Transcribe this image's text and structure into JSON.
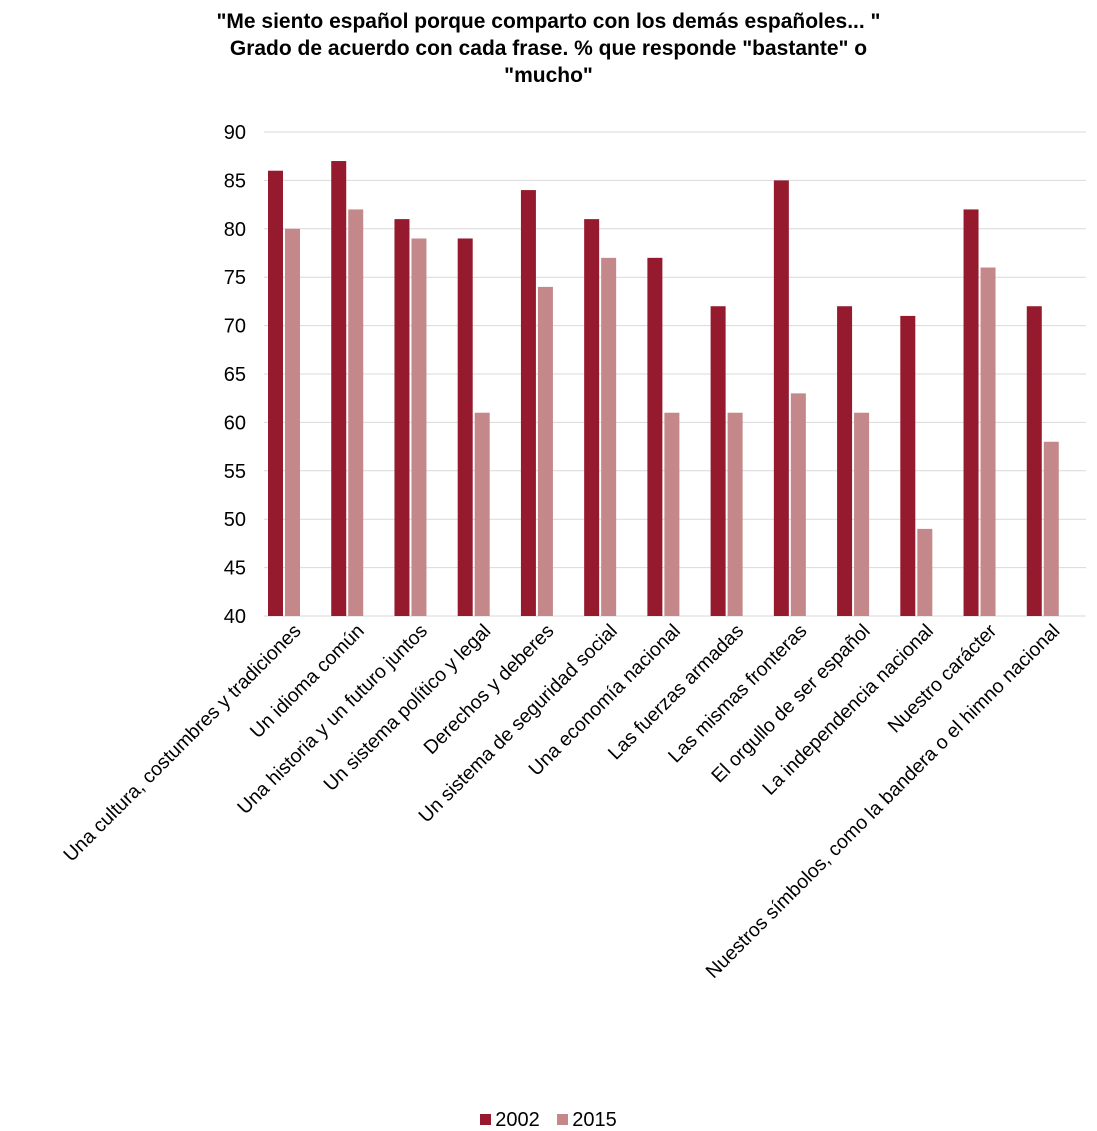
{
  "chart_data": {
    "type": "bar",
    "title_lines": [
      "\"Me siento español porque comparto con los demás españoles... \"",
      "Grado de acuerdo con cada frase. % que responde \"bastante\" o",
      "\"mucho\""
    ],
    "categories": [
      "Una cultura, costumbres y tradiciones",
      "Un idioma común",
      "Una historia y un futuro juntos",
      "Un sistema político y legal",
      "Derechos y deberes",
      "Un sistema de seguridad social",
      "Una economía  nacional",
      "Las fuerzas armadas",
      "Las mismas fronteras",
      "El orgullo de ser español",
      "La independencia nacional",
      "Nuestro carácter",
      "Nuestros símbolos, como la bandera  o el himno nacional"
    ],
    "series": [
      {
        "name": "2002",
        "color": "#951a2e",
        "values": [
          86,
          87,
          81,
          79,
          84,
          81,
          77,
          72,
          85,
          72,
          71,
          82,
          72
        ]
      },
      {
        "name": "2015",
        "color": "#c4888a",
        "values": [
          80,
          82,
          79,
          61,
          74,
          77,
          61,
          61,
          63,
          61,
          49,
          76,
          58
        ]
      }
    ],
    "ylim": [
      40,
      90
    ],
    "yticks": [
      40,
      45,
      50,
      55,
      60,
      65,
      70,
      75,
      80,
      85,
      90
    ],
    "grid": true,
    "legend_position": "bottom"
  }
}
